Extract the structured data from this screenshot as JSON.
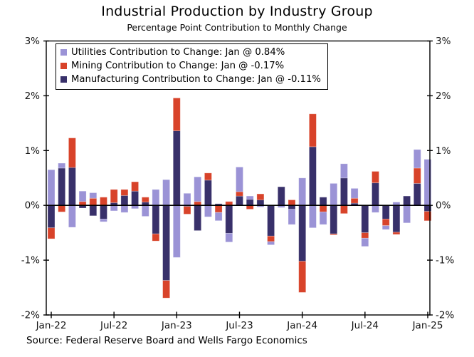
{
  "title": "Industrial Production by Industry Group",
  "subtitle": "Percentage Point Contribution to Monthly Change",
  "source": "Source: Federal Reserve Board and Wells Fargo Economics",
  "chart_data": {
    "type": "bar",
    "stacked": true,
    "grid": false,
    "legend_position": "top-left",
    "ylim": [
      -2,
      3
    ],
    "y_tick_values": [
      3,
      2,
      1,
      0,
      -1,
      -2
    ],
    "y_tick_labels": [
      "3%",
      "2%",
      "1%",
      "0%",
      "-1%",
      "-2%"
    ],
    "x_tick_indices": [
      0,
      6,
      12,
      18,
      24,
      30,
      36
    ],
    "x_tick_labels": [
      "Jan-22",
      "Jul-22",
      "Jan-23",
      "Jul-23",
      "Jan-24",
      "Jul-24",
      "Jan-25"
    ],
    "x": [
      "Jan-22",
      "Feb-22",
      "Mar-22",
      "Apr-22",
      "May-22",
      "Jun-22",
      "Jul-22",
      "Aug-22",
      "Sep-22",
      "Oct-22",
      "Nov-22",
      "Dec-22",
      "Jan-23",
      "Feb-23",
      "Mar-23",
      "Apr-23",
      "May-23",
      "Jun-23",
      "Jul-23",
      "Aug-23",
      "Sep-23",
      "Oct-23",
      "Nov-23",
      "Dec-23",
      "Jan-24",
      "Feb-24",
      "Mar-24",
      "Apr-24",
      "May-24",
      "Jun-24",
      "Jul-24",
      "Aug-24",
      "Sep-24",
      "Oct-24",
      "Nov-24",
      "Dec-24",
      "Jan-25"
    ],
    "stack_order_from_zero": [
      "Manufacturing",
      "Mining",
      "Utilities"
    ],
    "series": [
      {
        "name": "Utilities",
        "legend": "Utilities Contribution to Change: Jan @ 0.84%",
        "color": "#9b93d6",
        "values": [
          0.65,
          0.09,
          -0.4,
          0.19,
          0.1,
          -0.05,
          -0.1,
          -0.13,
          -0.06,
          -0.2,
          0.29,
          0.47,
          -0.95,
          0.22,
          0.45,
          -0.21,
          -0.15,
          -0.16,
          0.45,
          0.06,
          -0.03,
          -0.06,
          -0.04,
          -0.28,
          0.5,
          -0.41,
          -0.23,
          0.4,
          0.26,
          0.18,
          -0.15,
          -0.13,
          -0.07,
          0.06,
          -0.32,
          0.34,
          0.84
        ]
      },
      {
        "name": "Mining",
        "legend": "Mining Contribution to Change: Jan @ -0.17%",
        "color": "#d8432a",
        "values": [
          -0.2,
          -0.12,
          0.54,
          0.07,
          0.13,
          0.15,
          0.24,
          0.11,
          0.17,
          0.09,
          -0.13,
          -0.32,
          0.6,
          -0.14,
          0.07,
          0.13,
          -0.13,
          0.07,
          0.08,
          -0.07,
          0.11,
          -0.1,
          0.0,
          0.1,
          -0.57,
          0.6,
          -0.12,
          -0.02,
          -0.15,
          0.09,
          -0.1,
          0.21,
          -0.12,
          -0.04,
          0.0,
          0.28,
          -0.17
        ]
      },
      {
        "name": "Manufacturing",
        "legend": "Manufacturing Contribution to Change: Jan @ -0.11%",
        "color": "#38306a",
        "values": [
          -0.41,
          0.68,
          0.69,
          -0.05,
          -0.19,
          -0.25,
          0.05,
          0.18,
          0.26,
          0.06,
          -0.52,
          -1.37,
          1.36,
          -0.02,
          -0.46,
          0.46,
          0.03,
          -0.51,
          0.17,
          0.11,
          0.1,
          -0.56,
          0.34,
          -0.07,
          -1.02,
          1.07,
          0.15,
          -0.52,
          0.5,
          0.04,
          -0.5,
          0.41,
          -0.25,
          -0.49,
          0.17,
          0.4,
          -0.11
        ]
      }
    ]
  }
}
